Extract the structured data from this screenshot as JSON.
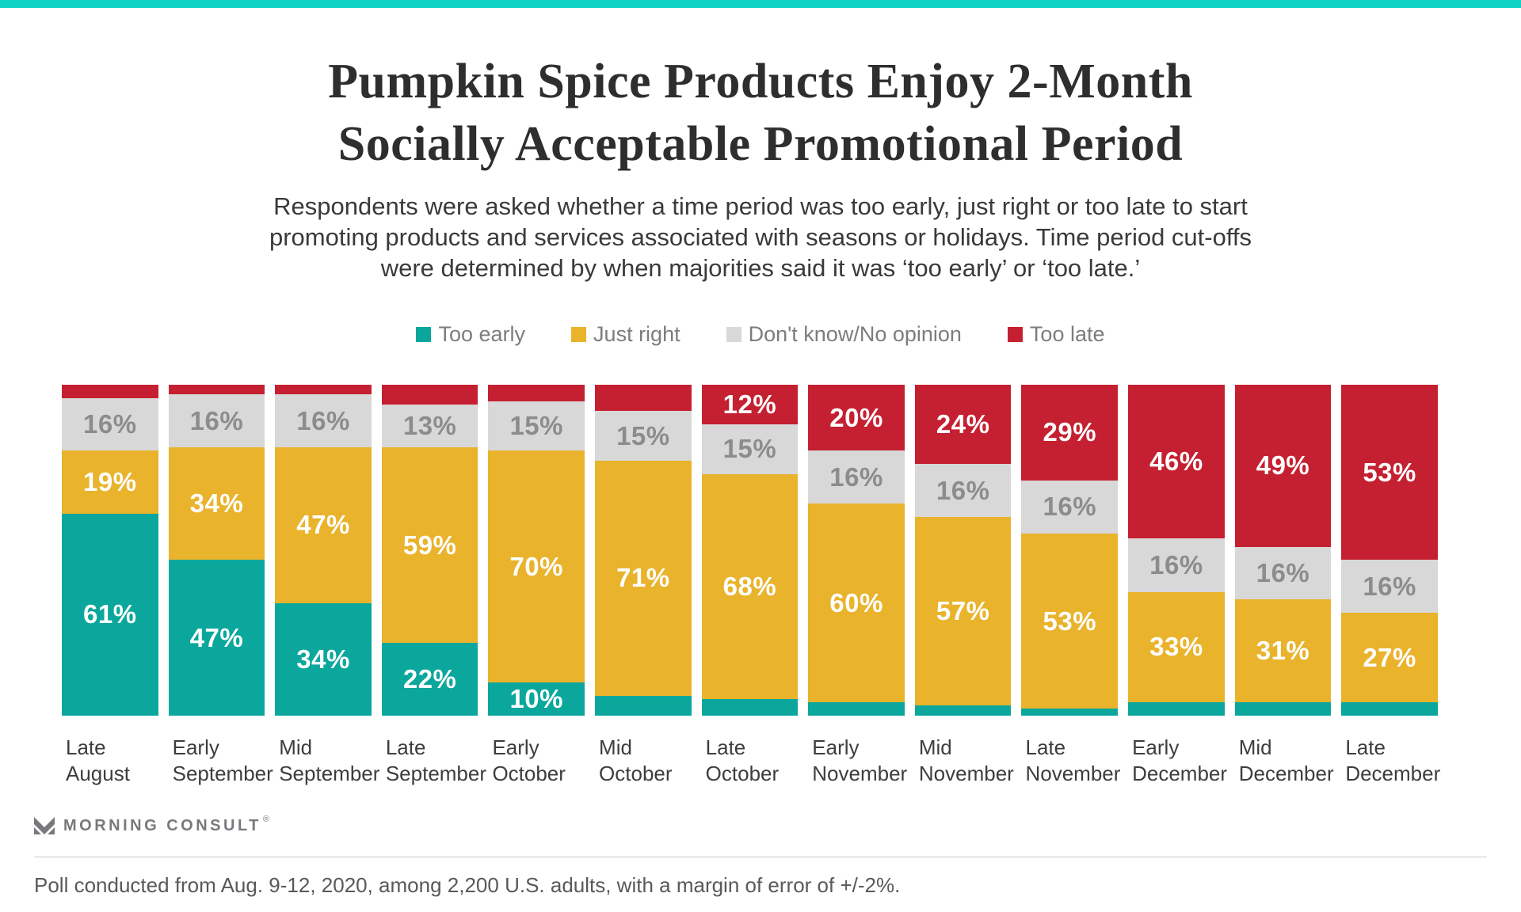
{
  "theme": {
    "banner_color": "#0fd3c5",
    "background": "#ffffff",
    "divider_color": "#c9c9c9",
    "brand_gray": "#77797c"
  },
  "header": {
    "title_line1": "Pumpkin Spice Products Enjoy 2-Month",
    "title_line2": "Socially Acceptable Promotional Period",
    "subtitle_lines": [
      "Respondents were asked whether a time period was too early, just right or too late to start",
      "promoting products and services associated with seasons or holidays. Time period cut-offs",
      "were determined by when majorities said it was ‘too early’ or ‘too late.’"
    ]
  },
  "chart_data": {
    "type": "bar",
    "stacked": true,
    "unit": "%",
    "ylim": [
      0,
      100
    ],
    "label_threshold": 10,
    "legend_position": "top",
    "categories": [
      {
        "line1": "Late",
        "line2": "August"
      },
      {
        "line1": "Early",
        "line2": "September"
      },
      {
        "line1": "Mid",
        "line2": "September"
      },
      {
        "line1": "Late",
        "line2": "September"
      },
      {
        "line1": "Early",
        "line2": "October"
      },
      {
        "line1": "Mid",
        "line2": "October"
      },
      {
        "line1": "Late",
        "line2": "October"
      },
      {
        "line1": "Early",
        "line2": "November"
      },
      {
        "line1": "Mid",
        "line2": "November"
      },
      {
        "line1": "Late",
        "line2": "November"
      },
      {
        "line1": "Early",
        "line2": "December"
      },
      {
        "line1": "Mid",
        "line2": "December"
      },
      {
        "line1": "Late",
        "line2": "December"
      }
    ],
    "series": [
      {
        "name": "Too early",
        "color": "#0ba79c",
        "label_color": "#ffffff",
        "values": [
          61,
          47,
          34,
          22,
          10,
          6,
          5,
          4,
          3,
          2,
          4,
          4,
          4
        ]
      },
      {
        "name": "Just right",
        "color": "#e9b32c",
        "label_color": "#ffffff",
        "values": [
          19,
          34,
          47,
          59,
          70,
          71,
          68,
          60,
          57,
          53,
          33,
          31,
          27
        ]
      },
      {
        "name": "Don't know/No opinion",
        "color": "#d8d8d8",
        "label_color": "#8c8c8c",
        "values": [
          16,
          16,
          16,
          13,
          15,
          15,
          15,
          16,
          16,
          16,
          16,
          16,
          16
        ]
      },
      {
        "name": "Too late",
        "color": "#c52031",
        "label_color": "#ffffff",
        "values": [
          4,
          3,
          3,
          6,
          5,
          8,
          12,
          20,
          24,
          29,
          46,
          49,
          53
        ]
      }
    ]
  },
  "footer": {
    "brand": "MORNING CONSULT",
    "registered_mark": "®",
    "footnote": "Poll conducted from Aug. 9-12, 2020, among 2,200 U.S. adults, with a margin of error of +/-2%."
  }
}
